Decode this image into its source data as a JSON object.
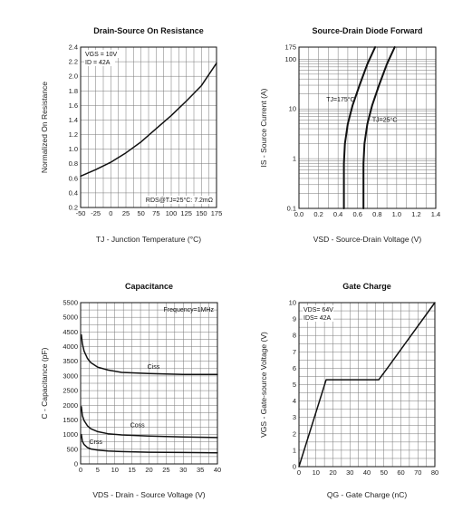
{
  "chart_data": [
    {
      "type": "line",
      "title": "Drain-Source On Resistance",
      "xlabel": "TJ - Junction Temperature (°C)",
      "ylabel": "Normalized On Resistance",
      "xlim": [
        -50,
        175
      ],
      "ylim": [
        0.2,
        2.4
      ],
      "x_scale": "linear",
      "y_scale": "linear",
      "grid": true,
      "x_ticks": [
        -50,
        -25,
        0,
        25,
        50,
        75,
        100,
        125,
        150,
        175
      ],
      "y_ticks": [
        0.2,
        0.4,
        0.6,
        0.8,
        1.0,
        1.2,
        1.4,
        1.6,
        1.8,
        2.0,
        2.2,
        2.4
      ],
      "x_tick_labels": [
        "-50",
        "-25",
        "0",
        "25",
        "50",
        "75",
        "100",
        "125",
        "150",
        "175"
      ],
      "y_tick_labels": [
        "0.2",
        "0.4",
        "0.6",
        "0.8",
        "1.0",
        "1.2",
        "1.4",
        "1.6",
        "1.8",
        "2.0",
        "2.2",
        "2.4"
      ],
      "annotations": [
        {
          "text": "VGS = 10V",
          "pos": "top-left"
        },
        {
          "text": "ID = 42A",
          "pos": "top-left"
        },
        {
          "text": "RDS@TJ=25°C: 7.2mΩ",
          "pos": "bottom-right"
        }
      ],
      "series": [
        {
          "x": [
            -50,
            -25,
            0,
            25,
            50,
            75,
            100,
            125,
            150,
            175
          ],
          "y": [
            0.63,
            0.72,
            0.82,
            0.95,
            1.1,
            1.28,
            1.46,
            1.66,
            1.87,
            2.18
          ]
        }
      ]
    },
    {
      "type": "line",
      "title": "Source-Drain Diode Forward",
      "xlabel": "VSD - Source-Drain Voltage (V)",
      "ylabel": "IS - Source Current (A)",
      "xlim": [
        0,
        1.4
      ],
      "ylim": [
        0.1,
        175
      ],
      "x_scale": "linear",
      "y_scale": "log",
      "grid": true,
      "x_ticks": [
        0,
        0.2,
        0.4,
        0.6,
        0.8,
        1.0,
        1.2,
        1.4
      ],
      "y_ticks": [
        0.1,
        1,
        10,
        100,
        175
      ],
      "x_tick_labels": [
        "0.0",
        "0.2",
        "0.4",
        "0.6",
        "0.8",
        "1.0",
        "1.2",
        "1.4"
      ],
      "y_tick_labels": [
        "0.1",
        "1",
        "10",
        "100",
        "175"
      ],
      "series": [
        {
          "name": "TJ=175°C",
          "x": [
            0.46,
            0.46,
            0.47,
            0.5,
            0.55,
            0.62,
            0.7,
            0.78
          ],
          "y": [
            0.1,
            0.8,
            2.0,
            5.0,
            12.0,
            30.0,
            80.0,
            175.0
          ]
        },
        {
          "name": "TJ=25°C",
          "x": [
            0.66,
            0.66,
            0.67,
            0.7,
            0.75,
            0.82,
            0.9,
            0.98
          ],
          "y": [
            0.1,
            0.8,
            2.0,
            5.0,
            12.0,
            30.0,
            80.0,
            175.0
          ]
        }
      ],
      "labels": [
        {
          "text": "TJ=175°C",
          "x": 0.28,
          "y": 14
        },
        {
          "text": "TJ=25°C",
          "x": 0.75,
          "y": 5.5
        }
      ]
    },
    {
      "type": "line",
      "title": "Capacitance",
      "xlabel": "VDS - Drain - Source Voltage (V)",
      "ylabel": "C - Capacitance (pF)",
      "xlim": [
        0,
        40
      ],
      "ylim": [
        0,
        5500
      ],
      "x_scale": "linear",
      "y_scale": "linear",
      "grid": true,
      "x_ticks": [
        0,
        5,
        10,
        15,
        20,
        25,
        30,
        35,
        40
      ],
      "y_ticks": [
        0,
        500,
        1000,
        1500,
        2000,
        2500,
        3000,
        3500,
        4000,
        4500,
        5000,
        5500
      ],
      "x_tick_labels": [
        "0",
        "5",
        "10",
        "15",
        "20",
        "25",
        "30",
        "35",
        "40"
      ],
      "y_tick_labels": [
        "0",
        "500",
        "1000",
        "1500",
        "2000",
        "2500",
        "3000",
        "3500",
        "4000",
        "4500",
        "5000",
        "5500"
      ],
      "annotations": [
        {
          "text": "Frequency=1MHz",
          "pos": "top-right"
        }
      ],
      "series": [
        {
          "name": "Ciss",
          "x": [
            0.2,
            0.5,
            1,
            2,
            3,
            5,
            8,
            12,
            20,
            30,
            40
          ],
          "y": [
            4400,
            4100,
            3850,
            3600,
            3450,
            3300,
            3200,
            3120,
            3080,
            3050,
            3050
          ]
        },
        {
          "name": "Coss",
          "x": [
            0.2,
            0.5,
            1,
            2,
            3,
            5,
            8,
            12,
            20,
            30,
            40
          ],
          "y": [
            1950,
            1650,
            1480,
            1300,
            1200,
            1100,
            1030,
            990,
            950,
            920,
            900
          ]
        },
        {
          "name": "Crss",
          "x": [
            0.2,
            0.5,
            1,
            2,
            3,
            5,
            8,
            12,
            20,
            30,
            40
          ],
          "y": [
            1000,
            780,
            660,
            560,
            510,
            470,
            440,
            420,
            400,
            390,
            380
          ]
        }
      ],
      "labels": [
        {
          "text": "Ciss",
          "x": 19.5,
          "y": 3250
        },
        {
          "text": "Coss",
          "x": 14.5,
          "y": 1250
        },
        {
          "text": "Crss",
          "x": 2.5,
          "y": 680
        }
      ]
    },
    {
      "type": "line",
      "title": "Gate Charge",
      "xlabel": "QG - Gate Charge (nC)",
      "ylabel": "VGS - Gate-source Voltage (V)",
      "xlim": [
        0,
        80
      ],
      "ylim": [
        0,
        10
      ],
      "x_scale": "linear",
      "y_scale": "linear",
      "grid": true,
      "x_ticks": [
        0,
        10,
        20,
        30,
        40,
        50,
        60,
        70,
        80
      ],
      "y_ticks": [
        0,
        1,
        2,
        3,
        4,
        5,
        6,
        7,
        8,
        9,
        10
      ],
      "x_tick_labels": [
        "0",
        "10",
        "20",
        "30",
        "40",
        "50",
        "60",
        "70",
        "80"
      ],
      "y_tick_labels": [
        "0",
        "1",
        "2",
        "3",
        "4",
        "5",
        "6",
        "7",
        "8",
        "9",
        "10"
      ],
      "annotations": [
        {
          "text": "VDS= 64V",
          "pos": "top-left"
        },
        {
          "text": "IDS= 42A",
          "pos": "top-left"
        }
      ],
      "series": [
        {
          "x": [
            0,
            16,
            47,
            52,
            80
          ],
          "y": [
            0,
            5.3,
            5.3,
            6.0,
            10.0
          ]
        }
      ]
    }
  ]
}
